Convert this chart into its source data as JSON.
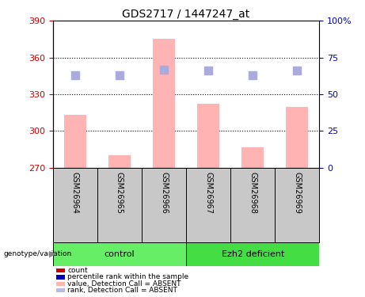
{
  "title": "GDS2717 / 1447247_at",
  "samples": [
    "GSM26964",
    "GSM26965",
    "GSM26966",
    "GSM26967",
    "GSM26968",
    "GSM26969"
  ],
  "bar_values": [
    313,
    280,
    375,
    322,
    287,
    320
  ],
  "rank_values": [
    63,
    63,
    67,
    66,
    63,
    66
  ],
  "ylim_left": [
    270,
    390
  ],
  "ylim_right": [
    0,
    100
  ],
  "yticks_left": [
    270,
    300,
    330,
    360,
    390
  ],
  "yticks_right": [
    0,
    25,
    50,
    75,
    100
  ],
  "ytick_labels_right": [
    "0",
    "25",
    "50",
    "75",
    "100%"
  ],
  "bar_color": "#FFB3B3",
  "bar_baseline": 270,
  "rank_color": "#AAAADD",
  "dot_size": 45,
  "groups": [
    {
      "label": "control",
      "indices": [
        0,
        1,
        2
      ],
      "color": "#66EE66"
    },
    {
      "label": "Ezh2 deficient",
      "indices": [
        3,
        4,
        5
      ],
      "color": "#44DD44"
    }
  ],
  "legend_items": [
    {
      "label": "count",
      "color": "#CC0000"
    },
    {
      "label": "percentile rank within the sample",
      "color": "#0000BB"
    },
    {
      "label": "value, Detection Call = ABSENT",
      "color": "#FFB3B3"
    },
    {
      "label": "rank, Detection Call = ABSENT",
      "color": "#BBBBDD"
    }
  ],
  "grid_color": "black",
  "left_axis_color": "#CC0000",
  "right_axis_color": "#0000BB",
  "background_color": "white",
  "label_area_color": "#C8C8C8"
}
